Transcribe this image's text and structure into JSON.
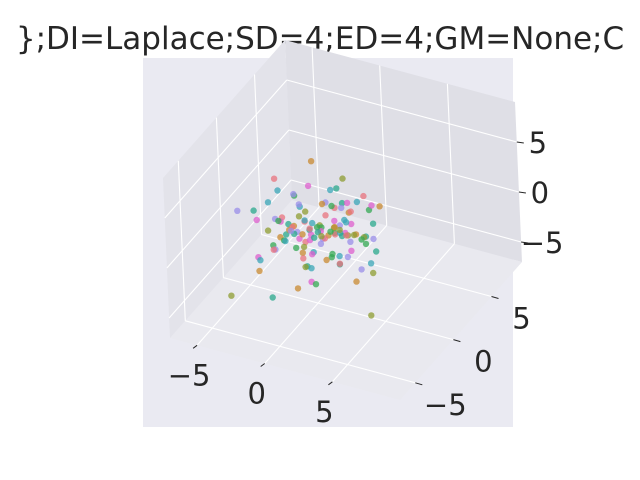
{
  "chart_data": {
    "type": "scatter",
    "projection": "3d",
    "title": "};DI=Laplace;SD=4;ED=4;GM=None;C",
    "xlim": [
      -7,
      10
    ],
    "ylim": [
      -7,
      9
    ],
    "zlim": [
      -7,
      9
    ],
    "x_ticks": [
      {
        "value": -5,
        "label": "−5"
      },
      {
        "value": 0,
        "label": "0"
      },
      {
        "value": 5,
        "label": "5"
      }
    ],
    "y_ticks": [
      {
        "value": -5,
        "label": "−5"
      },
      {
        "value": 0,
        "label": "0"
      },
      {
        "value": 5,
        "label": "5"
      }
    ],
    "z_ticks": [
      {
        "value": -5,
        "label": "−5"
      },
      {
        "value": 0,
        "label": "0"
      },
      {
        "value": 5,
        "label": "5"
      }
    ],
    "grid": true,
    "style": "seaborn-darkgrid",
    "background_color": "#eaeaf2",
    "pane_colors": [
      "#e3e3ea",
      "#dfdfe6",
      "#e9e9ef"
    ],
    "gridline_color": "#ffffff",
    "series": [
      {
        "color": "#e8737d",
        "points": [
          [
            -0.5,
            0.2,
            0.1
          ],
          [
            1.2,
            -0.8,
            0.6
          ],
          [
            -1.4,
            1.1,
            -0.3
          ],
          [
            0.6,
            1.5,
            -1.2
          ],
          [
            -0.9,
            -1.3,
            1.4
          ],
          [
            2.1,
            0.4,
            0.2
          ],
          [
            -2.3,
            -0.2,
            0.9
          ],
          [
            0.3,
            -2.1,
            -0.6
          ],
          [
            1.6,
            1.9,
            1.1
          ],
          [
            -1.1,
            0.6,
            -1.8
          ],
          [
            0.9,
            -0.1,
            2.2
          ],
          [
            -3.6,
            1.2,
            3.1
          ],
          [
            2.6,
            -1.4,
            -0.9
          ],
          [
            0.1,
            2.4,
            0.5
          ],
          [
            -1.7,
            -2.4,
            -0.2
          ],
          [
            3.2,
            0.9,
            4.1
          ]
        ]
      },
      {
        "color": "#c88a31",
        "points": [
          [
            0.7,
            0.5,
            -0.4
          ],
          [
            -1.2,
            -0.6,
            0.8
          ],
          [
            1.5,
            -1.2,
            -1.1
          ],
          [
            -0.4,
            1.7,
            1.3
          ],
          [
            2.4,
            1.1,
            -0.2
          ],
          [
            -2.1,
            0.3,
            -0.7
          ],
          [
            0.2,
            -1.9,
            1.6
          ],
          [
            1.1,
            2.5,
            0.3
          ],
          [
            -0.8,
            -0.3,
            -2.0
          ],
          [
            1.9,
            -0.7,
            1.9
          ],
          [
            -3.2,
            -1.8,
            -3.4
          ],
          [
            3.6,
            2.2,
            2.1
          ],
          [
            -0.6,
            0.9,
            6.2
          ],
          [
            4.2,
            -2.1,
            -1.5
          ],
          [
            -4.4,
            3.0,
            -4.6
          ],
          [
            0.4,
            -3.1,
            -2.7
          ]
        ]
      },
      {
        "color": "#8d9c31",
        "points": [
          [
            0.9,
            0.9,
            0.1
          ],
          [
            -0.2,
            -1.1,
            -0.5
          ],
          [
            1.8,
            0.1,
            0.9
          ],
          [
            -1.5,
            1.4,
            0.4
          ],
          [
            0.5,
            -2.2,
            -1.3
          ],
          [
            2.7,
            1.6,
            -0.8
          ],
          [
            -0.9,
            -0.4,
            1.7
          ],
          [
            1.2,
            2.1,
            -1.6
          ],
          [
            -2.6,
            -1.5,
            0.6
          ],
          [
            3.1,
            -0.3,
            1.2
          ],
          [
            -1.3,
            2.8,
            -2.1
          ],
          [
            4.6,
            -1.1,
            -5.6
          ],
          [
            -4.9,
            -2.6,
            -5.8
          ],
          [
            0.2,
            3.4,
            2.6
          ],
          [
            2.2,
            -2.9,
            3.0
          ],
          [
            3.8,
            0.7,
            -3.2
          ]
        ]
      },
      {
        "color": "#34a853",
        "points": [
          [
            -0.3,
            0.8,
            -0.2
          ],
          [
            1.4,
            -0.4,
            1.0
          ],
          [
            -1.8,
            -0.9,
            -0.6
          ],
          [
            0.6,
            1.2,
            1.9
          ],
          [
            2.2,
            -1.6,
            0.1
          ],
          [
            -0.7,
            2.0,
            -1.4
          ],
          [
            1.0,
            0.3,
            -2.3
          ],
          [
            -2.4,
            1.6,
            1.5
          ],
          [
            0.1,
            -2.6,
            0.8
          ],
          [
            3.0,
            1.3,
            -1.1
          ],
          [
            -1.5,
            -2.0,
            2.4
          ],
          [
            2.5,
            2.7,
            0.9
          ],
          [
            -3.4,
            0.4,
            -2.8
          ],
          [
            1.7,
            -3.0,
            -1.9
          ],
          [
            -0.5,
            3.3,
            -3.0
          ],
          [
            4.0,
            -0.9,
            1.6
          ]
        ]
      },
      {
        "color": "#2aa88c",
        "points": [
          [
            0.4,
            -0.3,
            0.5
          ],
          [
            -1.0,
            1.0,
            -0.9
          ],
          [
            1.6,
            0.7,
            -0.3
          ],
          [
            -0.6,
            -1.6,
            1.1
          ],
          [
            2.3,
            -0.9,
            -1.5
          ],
          [
            -1.9,
            -0.1,
            0.3
          ],
          [
            0.8,
            2.2,
            1.4
          ],
          [
            -2.7,
            0.9,
            -1.9
          ],
          [
            1.3,
            -2.3,
            2.0
          ],
          [
            3.3,
            1.8,
            0.6
          ],
          [
            -0.2,
            -0.8,
            -2.7
          ],
          [
            2.0,
            3.0,
            -2.2
          ],
          [
            -3.8,
            -1.2,
            1.9
          ],
          [
            4.4,
            0.2,
            -0.4
          ],
          [
            -1.4,
            -3.3,
            -4.1
          ],
          [
            0.9,
            1.4,
            3.6
          ]
        ]
      },
      {
        "color": "#3aa6b7",
        "points": [
          [
            -0.8,
            0.1,
            0.9
          ],
          [
            1.1,
            1.3,
            -0.7
          ],
          [
            -1.4,
            -1.4,
            -0.1
          ],
          [
            0.3,
            -0.8,
            1.8
          ],
          [
            2.0,
            0.6,
            1.3
          ],
          [
            -2.2,
            1.9,
            0.2
          ],
          [
            0.7,
            -1.8,
            -1.7
          ],
          [
            1.8,
            2.4,
            1.7
          ],
          [
            -0.4,
            0.4,
            -2.4
          ],
          [
            2.9,
            -1.9,
            0.4
          ],
          [
            -3.0,
            -0.7,
            2.6
          ],
          [
            0.5,
            2.9,
            -1.0
          ],
          [
            3.5,
            1.0,
            -2.6
          ],
          [
            -2.5,
            -2.8,
            -1.2
          ],
          [
            1.4,
            -0.2,
            5.0
          ],
          [
            -4.1,
            2.4,
            0.7
          ]
        ]
      },
      {
        "color": "#9a8ee8",
        "points": [
          [
            0.2,
            0.6,
            -1.0
          ],
          [
            -0.9,
            -0.7,
            0.4
          ],
          [
            1.3,
            -1.5,
            0.7
          ],
          [
            -1.6,
            0.8,
            1.6
          ],
          [
            0.8,
            1.8,
            -0.5
          ],
          [
            2.5,
            -0.2,
            -1.3
          ],
          [
            -2.0,
            -1.7,
            -0.9
          ],
          [
            1.5,
            0.9,
            2.3
          ],
          [
            -0.5,
            2.3,
            0.9
          ],
          [
            3.4,
            -1.3,
            1.5
          ],
          [
            -3.3,
            0.6,
            -0.3
          ],
          [
            0.0,
            -3.0,
            2.8
          ],
          [
            2.8,
            2.6,
            -1.8
          ],
          [
            -1.2,
            -0.5,
            3.9
          ],
          [
            4.8,
            -2.4,
            0.2
          ],
          [
            -4.6,
            -1.9,
            2.2
          ]
        ]
      },
      {
        "color": "#dd5fcd",
        "points": [
          [
            -0.1,
            -0.5,
            -0.3
          ],
          [
            1.0,
            0.8,
            0.9
          ],
          [
            -1.3,
            0.2,
            -1.2
          ],
          [
            0.5,
            -1.3,
            -0.8
          ],
          [
            1.9,
            1.4,
            0.4
          ],
          [
            -2.0,
            -0.9,
            1.2
          ],
          [
            0.9,
            -2.0,
            1.9
          ],
          [
            -0.7,
            1.9,
            -1.7
          ],
          [
            2.6,
            0.1,
            -0.9
          ],
          [
            -1.8,
            2.4,
            2.0
          ],
          [
            1.2,
            -2.7,
            -2.1
          ],
          [
            -3.0,
            -2.2,
            -1.6
          ],
          [
            3.3,
            1.7,
            2.5
          ],
          [
            0.4,
            3.1,
            -2.5
          ],
          [
            -2.4,
            -3.2,
            3.2
          ],
          [
            2.2,
            0.5,
            3.4
          ]
        ]
      }
    ]
  }
}
